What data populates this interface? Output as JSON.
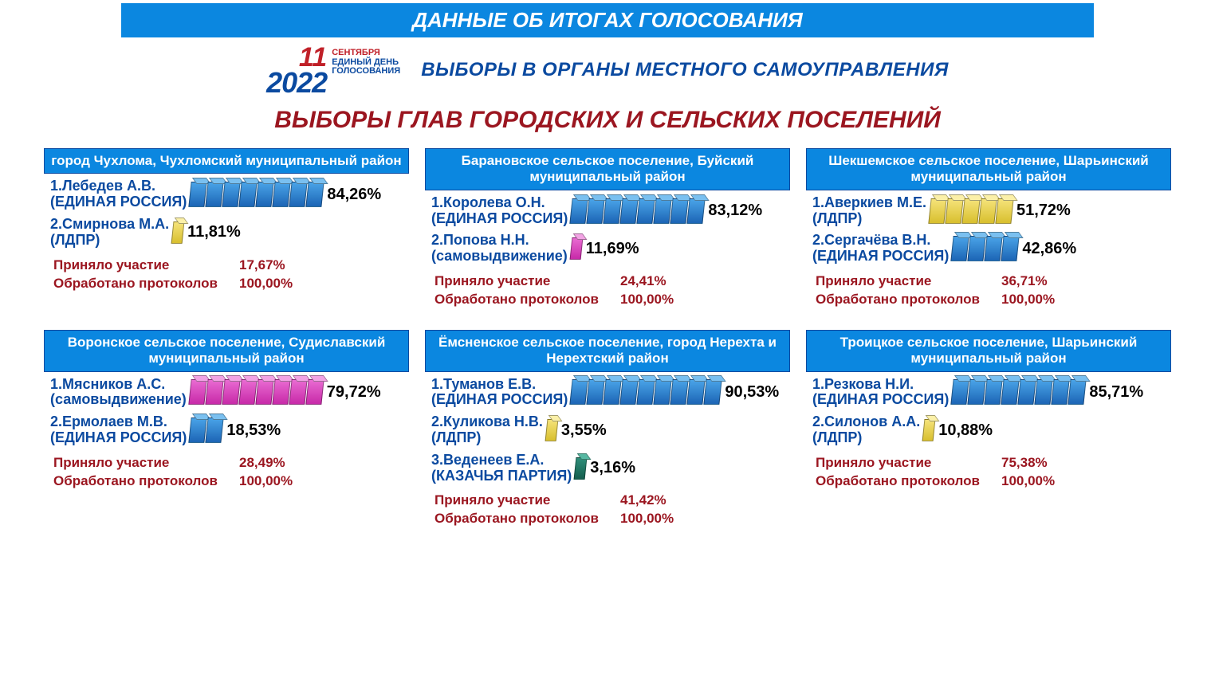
{
  "banner": "ДАННЫЕ ОБ ИТОГАХ ГОЛОСОВАНИЯ",
  "logo": {
    "day": "11",
    "year": "2022",
    "r1": "СЕНТЯБРЯ",
    "r2": "ЕДИНЫЙ ДЕНЬ",
    "r3": "ГОЛОСОВАНИЯ"
  },
  "subtitle": "ВЫБОРЫ В ОРГАНЫ МЕСТНОГО САМОУПРАВЛЕНИЯ",
  "main_title": "ВЫБОРЫ ГЛАВ ГОРОДСКИХ И СЕЛЬСКИХ ПОСЕЛЕНИЙ",
  "colors": {
    "banner_bg": "#0b87e0",
    "banner_fg": "#ffffff",
    "title": "#9b1620",
    "label": "#0b4aa0",
    "bar_blue": "#1c65b5",
    "bar_yellow": "#d8bf2e",
    "bar_pink": "#c72aa8",
    "bar_teal": "#155e4e"
  },
  "stat_labels": {
    "turnout": "Приняло участие",
    "processed": "Обработано протоколов"
  },
  "panels": [
    {
      "header": "город Чухлома, Чухломский муниципальный район",
      "candidates": [
        {
          "name": "1.Лебедев А.В.",
          "party": "(ЕДИНАЯ РОССИЯ)",
          "pct": "84,26%",
          "color": "blue",
          "segs": 8
        },
        {
          "name": "2.Смирнова М.А.",
          "party": "(ЛДПР)",
          "pct": "11,81%",
          "color": "yellow",
          "segs": 1
        }
      ],
      "turnout": "17,67%",
      "processed": "100,00%"
    },
    {
      "header": "Барановское сельское поселение, Буйский муниципальный район",
      "candidates": [
        {
          "name": "1.Королева О.Н.",
          "party": "(ЕДИНАЯ РОССИЯ)",
          "pct": "83,12%",
          "color": "blue",
          "segs": 8
        },
        {
          "name": "2.Попова Н.Н.",
          "party": "(самовыдвижение)",
          "pct": "11,69%",
          "color": "pink",
          "segs": 1
        }
      ],
      "turnout": "24,41%",
      "processed": "100,00%"
    },
    {
      "header": "Шекшемское сельское поселение, Шарьинский муниципальный район",
      "candidates": [
        {
          "name": "1.Аверкиев М.Е.",
          "party": "(ЛДПР)",
          "pct": "51,72%",
          "color": "yellow",
          "segs": 5
        },
        {
          "name": "2.Сергачёва В.Н.",
          "party": "(ЕДИНАЯ РОССИЯ)",
          "pct": "42,86%",
          "color": "blue",
          "segs": 4
        }
      ],
      "turnout": "36,71%",
      "processed": "100,00%"
    },
    {
      "header": "Воронское сельское поселение, Судиславский муниципальный район",
      "candidates": [
        {
          "name": "1.Мясников А.С.",
          "party": "(самовыдвижение)",
          "pct": "79,72%",
          "color": "pink",
          "segs": 8
        },
        {
          "name": "2.Ермолаев М.В.",
          "party": "(ЕДИНАЯ РОССИЯ)",
          "pct": "18,53%",
          "color": "blue",
          "segs": 2
        }
      ],
      "turnout": "28,49%",
      "processed": "100,00%"
    },
    {
      "header": "Ёмсненское сельское поселение, город Нерехта и Нерехтский район",
      "candidates": [
        {
          "name": "1.Туманов Е.В.",
          "party": "(ЕДИНАЯ РОССИЯ)",
          "pct": "90,53%",
          "color": "blue",
          "segs": 9
        },
        {
          "name": "2.Куликова Н.В.",
          "party": "(ЛДПР)",
          "pct": "3,55%",
          "color": "yellow",
          "segs": 1
        },
        {
          "name": "3.Веденеев Е.А.",
          "party": "(КАЗАЧЬЯ ПАРТИЯ)",
          "pct": "3,16%",
          "color": "teal",
          "segs": 1
        }
      ],
      "turnout": "41,42%",
      "processed": "100,00%"
    },
    {
      "header": "Троицкое сельское поселение, Шарьинский муниципальный район",
      "candidates": [
        {
          "name": "1.Резкова Н.И.",
          "party": "(ЕДИНАЯ РОССИЯ)",
          "pct": "85,71%",
          "color": "blue",
          "segs": 8
        },
        {
          "name": "2.Силонов А.А.",
          "party": "(ЛДПР)",
          "pct": "10,88%",
          "color": "yellow",
          "segs": 1
        }
      ],
      "turnout": "75,38%",
      "processed": "100,00%"
    }
  ]
}
